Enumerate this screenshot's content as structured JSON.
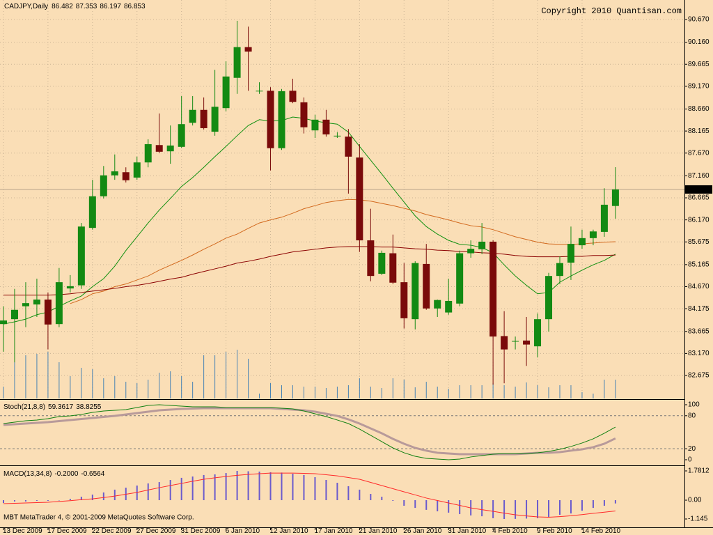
{
  "chart_data": [
    {
      "type": "candlestick",
      "title": "CADJPY,Daily",
      "annotation": "Copyright 2010 Quantisan.com",
      "categories": [
        "13 Dec 2009",
        null,
        null,
        null,
        "17 Dec 2009",
        null,
        null,
        null,
        "22 Dec 2009",
        null,
        null,
        null,
        "27 Dec 2009",
        null,
        null,
        null,
        "31 Dec 2009",
        null,
        null,
        null,
        "6 Jan 2010",
        null,
        null,
        null,
        "12 Jan 2010",
        null,
        null,
        null,
        "17 Jan 2010",
        null,
        null,
        null,
        "21 Jan 2010",
        null,
        null,
        null,
        "26 Jan 2010",
        null,
        null,
        null,
        "31 Jan 2010",
        null,
        null,
        null,
        "4 Feb 2010",
        null,
        null,
        null,
        "9 Feb 2010",
        null,
        null,
        null,
        "14 Feb 2010",
        null,
        null,
        null
      ],
      "open": [
        83.83,
        83.94,
        84.23,
        84.27,
        84.38,
        83.83,
        84.63,
        84.7,
        85.99,
        86.7,
        87.17,
        87.24,
        87.12,
        87.46,
        87.85,
        87.71,
        87.81,
        88.35,
        88.64,
        88.15,
        88.68,
        89.36,
        90.05,
        89.06,
        89.07,
        87.78,
        89.07,
        88.81,
        88.18,
        88.42,
        88.05,
        88.04,
        87.57,
        85.71,
        84.96,
        85.42,
        84.77,
        83.94,
        85.18,
        84.18,
        84.09,
        84.29,
        85.42,
        85.51,
        85.68,
        83.56,
        83.44,
        83.46,
        83.33,
        83.94,
        84.91,
        85.21,
        85.6,
        85.76,
        85.9,
        86.482
      ],
      "high": [
        84.23,
        84.62,
        84.77,
        84.85,
        84.54,
        85.09,
        84.93,
        86.1,
        87.07,
        87.38,
        87.64,
        87.35,
        87.59,
        87.98,
        88.56,
        88.29,
        88.95,
        88.95,
        88.92,
        89.54,
        89.73,
        90.64,
        90.51,
        89.26,
        89.15,
        89.11,
        89.34,
        88.92,
        88.53,
        88.64,
        88.14,
        88.21,
        87.87,
        86.42,
        85.48,
        85.84,
        85.2,
        85.24,
        85.63,
        84.38,
        84.85,
        85.48,
        85.71,
        86.1,
        85.71,
        84.12,
        83.55,
        83.99,
        84.07,
        84.98,
        85.35,
        86.02,
        85.95,
        85.95,
        86.88,
        87.353
      ],
      "low": [
        83.21,
        82.97,
        83.76,
        83.99,
        83.26,
        83.76,
        84.54,
        84.62,
        85.95,
        86.65,
        87.07,
        87.01,
        87.07,
        87.35,
        87.67,
        87.43,
        87.79,
        88.29,
        88.2,
        88.06,
        88.61,
        89.0,
        89.07,
        89.0,
        87.28,
        87.74,
        88.79,
        88.11,
        88.01,
        88.04,
        88.01,
        86.76,
        85.45,
        84.79,
        84.93,
        84.73,
        83.73,
        83.71,
        84.15,
        83.99,
        84.04,
        84.23,
        85.32,
        85.4,
        82.47,
        82.5,
        83.26,
        82.89,
        83.08,
        83.66,
        84.73,
        84.82,
        85.52,
        85.6,
        85.79,
        86.197
      ],
      "close": [
        83.91,
        84.15,
        84.3,
        84.38,
        83.82,
        84.77,
        84.68,
        86.02,
        86.7,
        87.17,
        87.26,
        87.06,
        87.46,
        87.87,
        87.7,
        87.84,
        88.32,
        88.64,
        88.23,
        88.71,
        89.39,
        90.05,
        89.95,
        89.07,
        87.78,
        89.06,
        88.82,
        88.25,
        88.42,
        88.09,
        88.06,
        87.59,
        85.71,
        84.91,
        85.43,
        84.76,
        83.96,
        85.2,
        84.18,
        84.37,
        84.35,
        85.42,
        85.52,
        85.68,
        83.55,
        83.26,
        83.45,
        83.37,
        83.94,
        84.91,
        85.2,
        85.63,
        85.76,
        85.91,
        86.51,
        86.853
      ],
      "bull_color": "#138a13",
      "bear_color": "#7a0a0a",
      "lines": [
        {
          "color": "#109010",
          "values": [
            83.83,
            83.88,
            83.94,
            84.04,
            84.1,
            84.23,
            84.35,
            84.46,
            84.67,
            84.85,
            85.13,
            85.48,
            85.79,
            86.1,
            86.39,
            86.65,
            86.92,
            87.12,
            87.35,
            87.59,
            87.82,
            88.06,
            88.29,
            88.42,
            88.39,
            88.4,
            88.48,
            88.45,
            88.39,
            88.35,
            88.32,
            88.14,
            87.82,
            87.51,
            87.2,
            86.88,
            86.57,
            86.26,
            86.02,
            85.85,
            85.71,
            85.62,
            85.6,
            85.55,
            85.43,
            85.16,
            84.91,
            84.7,
            84.51,
            84.54,
            84.77,
            84.91,
            85.04,
            85.16,
            85.26,
            85.4
          ]
        },
        {
          "color": "#d2691e",
          "values": [
            null,
            null,
            null,
            null,
            null,
            null,
            84.29,
            84.38,
            84.51,
            84.57,
            84.67,
            84.73,
            84.82,
            84.91,
            85.04,
            85.15,
            85.26,
            85.38,
            85.51,
            85.63,
            85.76,
            85.85,
            85.98,
            86.1,
            86.17,
            86.23,
            86.32,
            86.42,
            86.49,
            86.56,
            86.6,
            86.63,
            86.62,
            86.59,
            86.54,
            86.49,
            86.43,
            86.37,
            86.29,
            86.23,
            86.17,
            86.1,
            86.04,
            86.01,
            85.95,
            85.87,
            85.79,
            85.73,
            85.67,
            85.63,
            85.62,
            85.62,
            85.63,
            85.65,
            85.67,
            85.68
          ]
        },
        {
          "color": "#8b0000",
          "values": [
            84.48,
            84.48,
            84.48,
            84.48,
            84.48,
            84.49,
            84.51,
            84.54,
            84.57,
            84.6,
            84.63,
            84.67,
            84.7,
            84.74,
            84.79,
            84.84,
            84.88,
            84.95,
            85.01,
            85.07,
            85.13,
            85.2,
            85.24,
            85.29,
            85.35,
            85.4,
            85.45,
            85.48,
            85.51,
            85.54,
            85.56,
            85.57,
            85.57,
            85.57,
            85.56,
            85.56,
            85.54,
            85.52,
            85.51,
            85.49,
            85.48,
            85.46,
            85.45,
            85.43,
            85.42,
            85.4,
            85.37,
            85.35,
            85.34,
            85.34,
            85.34,
            85.35,
            85.35,
            85.37,
            85.37,
            85.38
          ]
        }
      ],
      "volume": [
        17,
        64,
        62,
        64,
        67,
        52,
        32,
        44,
        42,
        29,
        32,
        24,
        22,
        27,
        37,
        39,
        32,
        24,
        62,
        62,
        67,
        70,
        57,
        7,
        22,
        19,
        19,
        17,
        17,
        15,
        17,
        19,
        29,
        17,
        15,
        29,
        27,
        16,
        24,
        17,
        14,
        19,
        19,
        19,
        22,
        19,
        17,
        23,
        19,
        16,
        19,
        19,
        9,
        7,
        27,
        27
      ],
      "volume_color": "#4682b4",
      "ylim": [
        82.159,
        91.108
      ],
      "yticks": [
        {
          "value": 90.67,
          "label": "90.670"
        },
        {
          "value": 90.16,
          "label": "90.160"
        },
        89.665,
        {
          "value": 89.17,
          "label": "89.170"
        },
        {
          "value": 88.66,
          "label": "88.660"
        },
        88.165,
        {
          "value": 87.67,
          "label": "87.670"
        },
        {
          "value": 87.16,
          "label": "87.160"
        },
        86.665,
        {
          "value": 86.17,
          "label": "86.170"
        },
        85.675,
        85.165,
        {
          "value": 84.67,
          "label": "84.670"
        },
        84.175,
        83.665,
        {
          "value": 83.17,
          "label": "83.170"
        },
        82.675
      ],
      "grid": true
    },
    {
      "type": "line",
      "title": "Stoch(21,8,8)",
      "series": [
        {
          "color": "#108010",
          "values": [
            65.8,
            68.4,
            70.9,
            72.2,
            74.7,
            78.5,
            79.7,
            82.3,
            86.1,
            88.6,
            89.9,
            91.1,
            94.9,
            98.7,
            100,
            98.7,
            97.5,
            96.2,
            96.2,
            96.2,
            94.9,
            94.9,
            94.9,
            94.9,
            94.9,
            93.7,
            92.4,
            88.6,
            83.5,
            78.5,
            72.2,
            65.8,
            55.7,
            44.3,
            32.9,
            21.5,
            12.7,
            6.3,
            2.5,
            1.3,
            0,
            1.3,
            5.1,
            7.6,
            10.1,
            11.4,
            11.4,
            11.4,
            12.7,
            15.2,
            19.0,
            24.1,
            30.4,
            38.0,
            48.1,
            59.3617
          ]
        },
        {
          "color": "#b89a9a",
          "values": [
            63.3,
            64.6,
            65.8,
            67.1,
            68.4,
            70.3,
            72.2,
            74.1,
            75.9,
            77.8,
            79.7,
            82.3,
            84.8,
            87.3,
            89.9,
            91.1,
            92.4,
            93.1,
            93.7,
            93.7,
            93.7,
            93.7,
            93.7,
            93.7,
            93.7,
            92.4,
            91.1,
            89.9,
            87.3,
            83.5,
            79.7,
            73.4,
            65.8,
            57.0,
            48.1,
            38.0,
            29.1,
            21.5,
            16.5,
            12.7,
            11.4,
            10.1,
            10.1,
            10.1,
            10.1,
            10.1,
            10.1,
            11.4,
            12.7,
            12.7,
            13.9,
            16.5,
            19.0,
            22.8,
            29.1,
            38.8255
          ]
        }
      ],
      "levels": [
        80,
        20
      ],
      "ylim": [
        -8.9,
        107.6
      ],
      "yticks": [
        100,
        80,
        20,
        0
      ]
    },
    {
      "type": "macd",
      "title": "MACD(13,34,8)",
      "annotation": "MBT MetaTrader 4, © 2001-2009 MetaQuotes Software Corp.",
      "values": [
        -0.17,
        -0.08,
        -0.08,
        -0.04,
        -0.04,
        -0.02,
        0.08,
        0.21,
        0.34,
        0.47,
        0.64,
        0.76,
        0.89,
        1.02,
        1.1,
        1.23,
        1.36,
        1.44,
        1.53,
        1.57,
        1.65,
        1.7812,
        1.76,
        1.74,
        1.7,
        1.68,
        1.61,
        1.53,
        1.4,
        1.23,
        1.06,
        0.85,
        0.64,
        0.38,
        0.21,
        -0.04,
        -0.34,
        -0.47,
        -0.59,
        -0.68,
        -0.76,
        -0.85,
        -0.93,
        -0.98,
        -1.1,
        -1.145,
        -1.14,
        -1.12,
        -1.1,
        -1.02,
        -0.89,
        -0.81,
        -0.64,
        -0.47,
        -0.34,
        -0.2
      ],
      "value_labels": [
        null,
        null,
        null,
        null,
        null,
        null,
        null,
        null,
        null,
        null,
        null,
        null,
        null,
        null,
        null,
        null,
        null,
        null,
        null,
        null,
        null,
        null,
        null,
        null,
        null,
        null,
        null,
        null,
        null,
        null,
        null,
        null,
        null,
        null,
        null,
        null,
        null,
        null,
        null,
        null,
        null,
        null,
        null,
        null,
        null,
        null,
        null,
        null,
        null,
        null,
        null,
        null,
        null,
        null,
        null,
        "-0.2000"
      ],
      "signal": [
        -0.21,
        -0.19,
        -0.17,
        -0.15,
        -0.13,
        -0.08,
        -0.03,
        0.03,
        0.08,
        0.16,
        0.25,
        0.36,
        0.47,
        0.62,
        0.76,
        0.89,
        1.02,
        1.15,
        1.27,
        1.36,
        1.44,
        1.51,
        1.57,
        1.61,
        1.65,
        1.65,
        1.65,
        1.63,
        1.61,
        1.55,
        1.48,
        1.38,
        1.27,
        1.08,
        0.89,
        0.7,
        0.51,
        0.32,
        0.13,
        -0.02,
        -0.17,
        -0.32,
        -0.47,
        -0.58,
        -0.68,
        -0.79,
        -0.89,
        -0.96,
        -1.02,
        -1.04,
        -1.0,
        -0.95,
        -0.88,
        -0.8,
        -0.73,
        -0.6564
      ],
      "color": "#6a5acd",
      "signal_color": "#ff2a2a",
      "ylim": [
        -1.654,
        2.035
      ],
      "yticks": [
        1.7812,
        {
          "value": 0,
          "label": "0.00"
        },
        -1.145
      ]
    }
  ]
}
